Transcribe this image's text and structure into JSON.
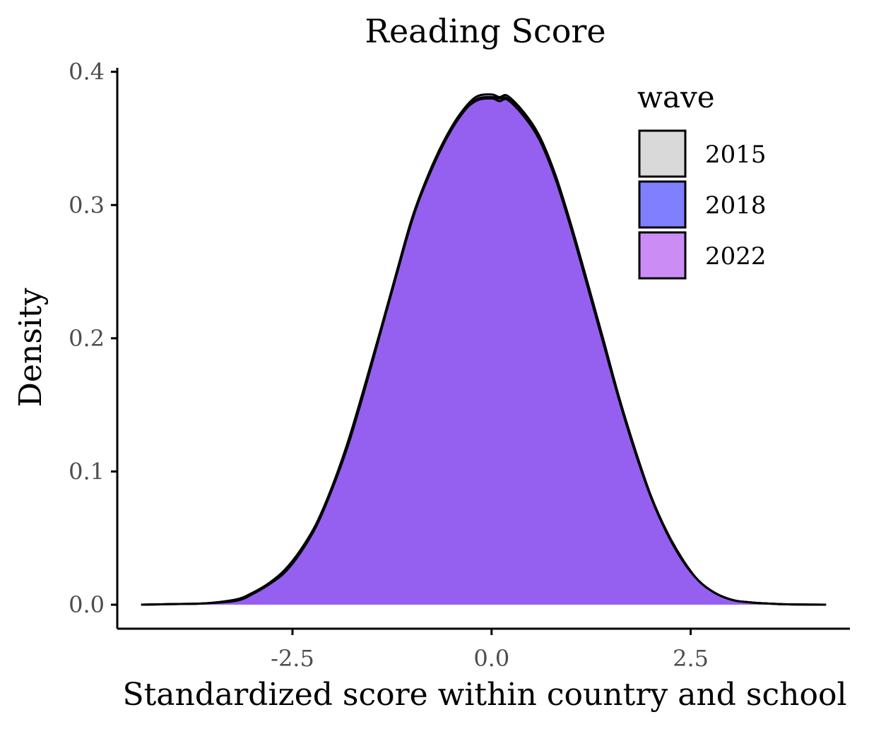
{
  "chart_data": {
    "type": "area",
    "title": "Reading Score",
    "xlabel": "Standardized score within country and school",
    "ylabel": "Density",
    "xlim": [
      -4.7,
      4.5
    ],
    "ylim": [
      -0.018,
      0.403
    ],
    "x_ticks": [
      -2.5,
      0.0,
      2.5
    ],
    "x_tick_labels": [
      "-2.5",
      "0.0",
      "2.5"
    ],
    "y_ticks": [
      0.0,
      0.1,
      0.2,
      0.3,
      0.4
    ],
    "y_tick_labels": [
      "0.0",
      "0.1",
      "0.2",
      "0.3",
      "0.4"
    ],
    "grid": false,
    "legend": {
      "title": "wave",
      "placement": "top-right"
    },
    "x": [
      -4.4,
      -4.0,
      -3.6,
      -3.2,
      -3.0,
      -2.8,
      -2.6,
      -2.4,
      -2.2,
      -2.0,
      -1.8,
      -1.6,
      -1.4,
      -1.2,
      -1.0,
      -0.8,
      -0.6,
      -0.4,
      -0.2,
      0.0,
      0.1,
      0.2,
      0.4,
      0.6,
      0.8,
      1.0,
      1.2,
      1.4,
      1.6,
      1.8,
      2.0,
      2.2,
      2.4,
      2.6,
      2.8,
      3.0,
      3.2,
      3.6,
      4.0,
      4.2
    ],
    "series": [
      {
        "name": "2015",
        "fill": "#d9d9d9",
        "values": [
          0.0,
          0.0005,
          0.001,
          0.004,
          0.009,
          0.016,
          0.026,
          0.041,
          0.061,
          0.089,
          0.123,
          0.163,
          0.205,
          0.248,
          0.29,
          0.322,
          0.348,
          0.368,
          0.381,
          0.383,
          0.381,
          0.382,
          0.37,
          0.352,
          0.323,
          0.285,
          0.243,
          0.2,
          0.156,
          0.117,
          0.082,
          0.055,
          0.034,
          0.018,
          0.009,
          0.004,
          0.002,
          0.0005,
          0.0001,
          0.0
        ]
      },
      {
        "name": "2018",
        "fill": "#7f7fff",
        "values": [
          0.0,
          0.0005,
          0.001,
          0.004,
          0.009,
          0.015,
          0.025,
          0.04,
          0.06,
          0.088,
          0.121,
          0.161,
          0.204,
          0.247,
          0.289,
          0.32,
          0.346,
          0.366,
          0.379,
          0.381,
          0.38,
          0.38,
          0.368,
          0.35,
          0.321,
          0.283,
          0.241,
          0.198,
          0.155,
          0.116,
          0.081,
          0.054,
          0.033,
          0.018,
          0.009,
          0.004,
          0.002,
          0.0005,
          0.0001,
          0.0
        ]
      },
      {
        "name": "2022",
        "fill": "#cc8cf5",
        "values": [
          0.0,
          0.0005,
          0.001,
          0.003,
          0.008,
          0.015,
          0.024,
          0.039,
          0.059,
          0.087,
          0.12,
          0.16,
          0.203,
          0.246,
          0.288,
          0.321,
          0.347,
          0.367,
          0.378,
          0.38,
          0.378,
          0.379,
          0.367,
          0.349,
          0.32,
          0.282,
          0.24,
          0.197,
          0.154,
          0.115,
          0.081,
          0.054,
          0.033,
          0.018,
          0.009,
          0.004,
          0.002,
          0.0005,
          0.0001,
          0.0
        ]
      }
    ]
  },
  "colors": {
    "overlap_fill": "#8549ee",
    "outline": "#000000",
    "tick_label": "#4d4d4d"
  }
}
